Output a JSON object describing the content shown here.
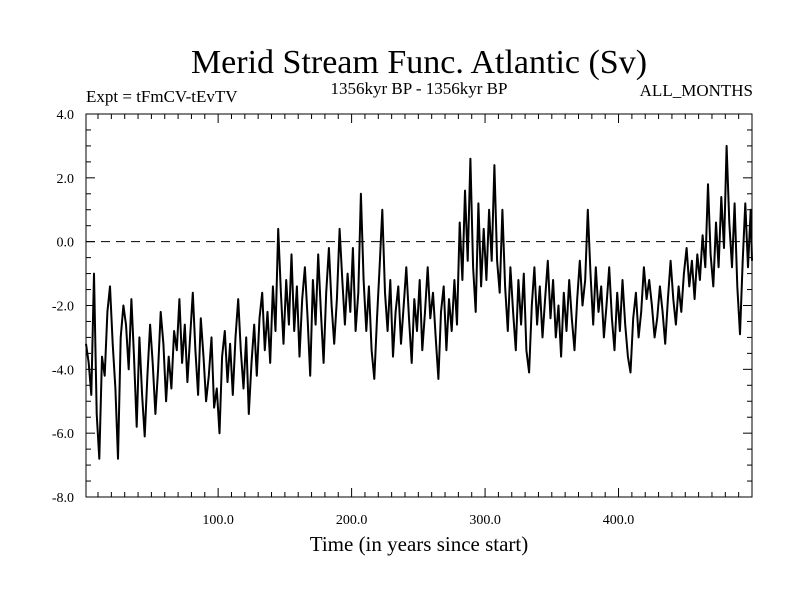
{
  "chart_data": {
    "type": "line",
    "title": "Merid Stream Func. Atlantic (Sv)",
    "subtitle_left": "Expt = tFmCV-tEvTV",
    "subtitle_center": "1356kyr BP - 1356kyr BP",
    "subtitle_right": "ALL_MONTHS",
    "xlabel": "Time (in years since start)",
    "ylabel": "",
    "xlim": [
      1,
      500
    ],
    "ylim": [
      -8.0,
      4.0
    ],
    "x_ticks": [
      {
        "value": 100,
        "label": "100.0"
      },
      {
        "value": 200,
        "label": "200.0"
      },
      {
        "value": 300,
        "label": "300.0"
      },
      {
        "value": 400,
        "label": "400.0"
      }
    ],
    "y_ticks": [
      {
        "value": 4,
        "label": "4.0"
      },
      {
        "value": 2,
        "label": "2.0"
      },
      {
        "value": 0,
        "label": "0.0"
      },
      {
        "value": -2,
        "label": "-2.0"
      },
      {
        "value": -4,
        "label": "-4.0"
      },
      {
        "value": -6,
        "label": "-6.0"
      },
      {
        "value": -8,
        "label": "-8.0"
      }
    ],
    "reference_line": {
      "value": 0,
      "style": "dashed"
    },
    "series": [
      {
        "name": "Merid Stream Func. Atlantic",
        "color": "#000000",
        "points": [
          [
            1,
            -3.2
          ],
          [
            3,
            -3.8
          ],
          [
            5,
            -4.8
          ],
          [
            7,
            -1.0
          ],
          [
            9,
            -5.4
          ],
          [
            11,
            -6.8
          ],
          [
            13,
            -3.6
          ],
          [
            15,
            -4.2
          ],
          [
            17,
            -2.2
          ],
          [
            19,
            -1.4
          ],
          [
            21,
            -3.2
          ],
          [
            23,
            -4.6
          ],
          [
            25,
            -6.8
          ],
          [
            27,
            -3.0
          ],
          [
            29,
            -2.0
          ],
          [
            31,
            -2.6
          ],
          [
            33,
            -4.0
          ],
          [
            35,
            -1.8
          ],
          [
            37,
            -3.6
          ],
          [
            39,
            -5.8
          ],
          [
            41,
            -3.0
          ],
          [
            43,
            -4.8
          ],
          [
            45,
            -6.1
          ],
          [
            47,
            -4.2
          ],
          [
            49,
            -2.6
          ],
          [
            51,
            -3.8
          ],
          [
            53,
            -5.4
          ],
          [
            55,
            -4.0
          ],
          [
            57,
            -2.2
          ],
          [
            59,
            -3.2
          ],
          [
            61,
            -5.0
          ],
          [
            63,
            -3.6
          ],
          [
            65,
            -4.6
          ],
          [
            67,
            -2.8
          ],
          [
            69,
            -3.4
          ],
          [
            71,
            -1.8
          ],
          [
            73,
            -3.8
          ],
          [
            75,
            -2.6
          ],
          [
            77,
            -4.4
          ],
          [
            79,
            -3.0
          ],
          [
            81,
            -1.6
          ],
          [
            83,
            -3.4
          ],
          [
            85,
            -4.8
          ],
          [
            87,
            -2.4
          ],
          [
            89,
            -3.6
          ],
          [
            91,
            -5.0
          ],
          [
            93,
            -4.2
          ],
          [
            95,
            -3.0
          ],
          [
            97,
            -5.2
          ],
          [
            99,
            -4.6
          ],
          [
            101,
            -6.0
          ],
          [
            103,
            -3.6
          ],
          [
            105,
            -2.8
          ],
          [
            107,
            -4.4
          ],
          [
            109,
            -3.2
          ],
          [
            111,
            -4.8
          ],
          [
            113,
            -3.0
          ],
          [
            115,
            -1.8
          ],
          [
            117,
            -3.4
          ],
          [
            119,
            -4.6
          ],
          [
            121,
            -3.0
          ],
          [
            123,
            -5.4
          ],
          [
            125,
            -3.8
          ],
          [
            127,
            -2.6
          ],
          [
            129,
            -4.2
          ],
          [
            131,
            -2.4
          ],
          [
            133,
            -1.6
          ],
          [
            135,
            -3.4
          ],
          [
            137,
            -2.2
          ],
          [
            139,
            -3.8
          ],
          [
            141,
            -1.4
          ],
          [
            143,
            -2.8
          ],
          [
            145,
            0.4
          ],
          [
            147,
            -1.6
          ],
          [
            149,
            -3.2
          ],
          [
            151,
            -1.2
          ],
          [
            153,
            -2.6
          ],
          [
            155,
            -0.4
          ],
          [
            157,
            -2.8
          ],
          [
            159,
            -1.4
          ],
          [
            161,
            -3.6
          ],
          [
            163,
            -1.8
          ],
          [
            165,
            -0.8
          ],
          [
            167,
            -2.4
          ],
          [
            169,
            -4.2
          ],
          [
            171,
            -1.2
          ],
          [
            173,
            -2.6
          ],
          [
            175,
            -0.4
          ],
          [
            177,
            -2.2
          ],
          [
            179,
            -3.8
          ],
          [
            181,
            -1.6
          ],
          [
            183,
            -0.2
          ],
          [
            185,
            -2.0
          ],
          [
            187,
            -3.2
          ],
          [
            189,
            -1.8
          ],
          [
            191,
            0.4
          ],
          [
            193,
            -1.2
          ],
          [
            195,
            -2.6
          ],
          [
            197,
            -1.0
          ],
          [
            199,
            -2.2
          ],
          [
            201,
            -0.2
          ],
          [
            203,
            -2.8
          ],
          [
            205,
            -1.6
          ],
          [
            207,
            1.5
          ],
          [
            209,
            -1.2
          ],
          [
            211,
            -2.8
          ],
          [
            213,
            -1.4
          ],
          [
            215,
            -3.4
          ],
          [
            217,
            -4.3
          ],
          [
            219,
            -2.4
          ],
          [
            221,
            -0.8
          ],
          [
            223,
            1.0
          ],
          [
            225,
            -1.6
          ],
          [
            227,
            -2.8
          ],
          [
            229,
            -1.2
          ],
          [
            231,
            -3.6
          ],
          [
            233,
            -2.2
          ],
          [
            235,
            -1.4
          ],
          [
            237,
            -3.2
          ],
          [
            239,
            -2.0
          ],
          [
            241,
            -0.8
          ],
          [
            243,
            -2.4
          ],
          [
            245,
            -3.8
          ],
          [
            247,
            -1.8
          ],
          [
            249,
            -2.8
          ],
          [
            251,
            -1.2
          ],
          [
            253,
            -3.4
          ],
          [
            255,
            -2.2
          ],
          [
            257,
            -0.8
          ],
          [
            259,
            -2.4
          ],
          [
            261,
            -1.6
          ],
          [
            263,
            -3.0
          ],
          [
            265,
            -4.3
          ],
          [
            267,
            -2.2
          ],
          [
            269,
            -1.4
          ],
          [
            271,
            -3.4
          ],
          [
            273,
            -1.8
          ],
          [
            275,
            -2.8
          ],
          [
            277,
            -1.2
          ],
          [
            279,
            -2.6
          ],
          [
            281,
            0.6
          ],
          [
            283,
            -1.2
          ],
          [
            285,
            1.6
          ],
          [
            287,
            -0.6
          ],
          [
            289,
            2.6
          ],
          [
            291,
            -0.8
          ],
          [
            293,
            -2.2
          ],
          [
            295,
            1.2
          ],
          [
            297,
            -1.4
          ],
          [
            299,
            0.4
          ],
          [
            301,
            -1.2
          ],
          [
            303,
            1.0
          ],
          [
            305,
            -0.6
          ],
          [
            307,
            2.4
          ],
          [
            309,
            -0.6
          ],
          [
            311,
            -1.6
          ],
          [
            313,
            1.0
          ],
          [
            315,
            -1.4
          ],
          [
            317,
            -2.8
          ],
          [
            319,
            -0.8
          ],
          [
            321,
            -2.2
          ],
          [
            323,
            -3.4
          ],
          [
            325,
            -1.2
          ],
          [
            327,
            -2.6
          ],
          [
            329,
            -1.0
          ],
          [
            331,
            -3.4
          ],
          [
            333,
            -4.1
          ],
          [
            335,
            -2.0
          ],
          [
            337,
            -0.8
          ],
          [
            339,
            -2.6
          ],
          [
            341,
            -1.4
          ],
          [
            343,
            -3.0
          ],
          [
            345,
            -1.8
          ],
          [
            347,
            -0.6
          ],
          [
            349,
            -2.4
          ],
          [
            351,
            -1.2
          ],
          [
            353,
            -3.0
          ],
          [
            355,
            -2.0
          ],
          [
            357,
            -3.6
          ],
          [
            359,
            -1.6
          ],
          [
            361,
            -2.8
          ],
          [
            363,
            -1.2
          ],
          [
            365,
            -2.4
          ],
          [
            367,
            -3.4
          ],
          [
            369,
            -1.8
          ],
          [
            371,
            -0.6
          ],
          [
            373,
            -2.0
          ],
          [
            375,
            -1.2
          ],
          [
            377,
            1.0
          ],
          [
            379,
            -1.0
          ],
          [
            381,
            -2.6
          ],
          [
            383,
            -0.8
          ],
          [
            385,
            -2.2
          ],
          [
            387,
            -1.4
          ],
          [
            389,
            -3.0
          ],
          [
            391,
            -2.0
          ],
          [
            393,
            -0.8
          ],
          [
            395,
            -2.4
          ],
          [
            397,
            -3.4
          ],
          [
            399,
            -1.6
          ],
          [
            401,
            -2.8
          ],
          [
            403,
            -1.2
          ],
          [
            405,
            -2.6
          ],
          [
            407,
            -3.6
          ],
          [
            409,
            -4.1
          ],
          [
            411,
            -2.4
          ],
          [
            413,
            -1.6
          ],
          [
            415,
            -3.0
          ],
          [
            417,
            -2.2
          ],
          [
            419,
            -0.8
          ],
          [
            421,
            -1.8
          ],
          [
            423,
            -1.2
          ],
          [
            425,
            -2.0
          ],
          [
            427,
            -3.0
          ],
          [
            429,
            -2.4
          ],
          [
            431,
            -1.4
          ],
          [
            433,
            -2.2
          ],
          [
            435,
            -3.2
          ],
          [
            437,
            -1.8
          ],
          [
            439,
            -0.6
          ],
          [
            441,
            -1.8
          ],
          [
            443,
            -2.6
          ],
          [
            445,
            -1.4
          ],
          [
            447,
            -2.2
          ],
          [
            449,
            -1.0
          ],
          [
            451,
            -0.2
          ],
          [
            453,
            -1.4
          ],
          [
            455,
            -0.6
          ],
          [
            457,
            -1.8
          ],
          [
            459,
            -0.4
          ],
          [
            461,
            -1.2
          ],
          [
            463,
            0.2
          ],
          [
            465,
            -0.8
          ],
          [
            467,
            1.8
          ],
          [
            469,
            -0.4
          ],
          [
            471,
            -1.4
          ],
          [
            473,
            0.6
          ],
          [
            475,
            -0.8
          ],
          [
            477,
            1.4
          ],
          [
            479,
            -0.2
          ],
          [
            481,
            3.0
          ],
          [
            483,
            0.6
          ],
          [
            485,
            -0.8
          ],
          [
            487,
            1.2
          ],
          [
            489,
            -1.4
          ],
          [
            491,
            -2.9
          ],
          [
            493,
            -0.6
          ],
          [
            495,
            1.2
          ],
          [
            497,
            -0.8
          ],
          [
            499,
            1.0
          ],
          [
            500,
            -0.6
          ]
        ]
      }
    ]
  }
}
